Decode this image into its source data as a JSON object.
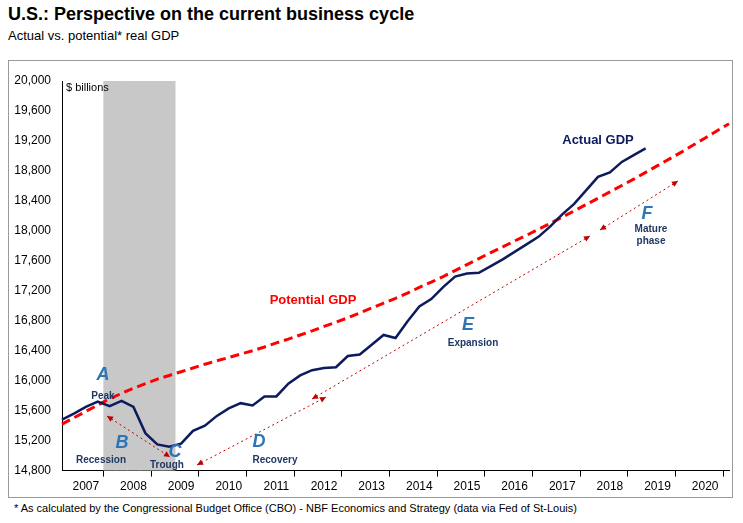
{
  "chart_data": {
    "type": "line",
    "title": "U.S.: Perspective on the current business cycle",
    "subtitle": "Actual vs. potential* real GDP",
    "y_label": "$ billions",
    "note": "* As calculated by the Congressional Budget Office (CBO) - NBF Economics and Strategy (data via Fed of St-Louis)",
    "categories": [
      null,
      null,
      "2007",
      null,
      null,
      null,
      "2008",
      null,
      null,
      null,
      "2009",
      null,
      null,
      null,
      "2010",
      null,
      null,
      null,
      "2011",
      null,
      null,
      null,
      "2012",
      null,
      null,
      null,
      "2013",
      null,
      null,
      null,
      "2014",
      null,
      null,
      null,
      "2015",
      null,
      null,
      null,
      "2016",
      null,
      null,
      null,
      "2017",
      null,
      null,
      null,
      "2018",
      null,
      null,
      null,
      "2019",
      null,
      null,
      null,
      "2020",
      null,
      null
    ],
    "series": [
      {
        "name": "Actual GDP",
        "color": "#0d1b5e",
        "line_style": "solid",
        "marker": "none",
        "values": [
          15480,
          15560,
          15650,
          15720,
          15660,
          15730,
          15650,
          15300,
          15150,
          15120,
          15160,
          15330,
          15400,
          15530,
          15630,
          15700,
          15670,
          15790,
          15790,
          15960,
          16070,
          16140,
          16170,
          16180,
          16330,
          16350,
          16480,
          16610,
          16570,
          16790,
          16990,
          17090,
          17250,
          17390,
          17430,
          17440,
          17530,
          17620,
          17720,
          17820,
          17920,
          18060,
          18220,
          18360,
          18540,
          18720,
          18780,
          18920,
          19010,
          19100,
          null,
          null,
          null,
          null,
          null,
          null,
          null
        ]
      },
      {
        "name": "Potential GDP",
        "color": "#ff0000",
        "line_style": "dashed",
        "marker": "none",
        "values": [
          15420,
          15505,
          15590,
          15675,
          15760,
          15830,
          15900,
          15960,
          16020,
          16070,
          16120,
          16170,
          16220,
          16265,
          16310,
          16355,
          16400,
          16450,
          16505,
          16555,
          16610,
          16665,
          16725,
          16780,
          16840,
          16905,
          16970,
          17035,
          17100,
          17170,
          17245,
          17315,
          17390,
          17470,
          17550,
          17630,
          17710,
          17785,
          17865,
          17940,
          18020,
          18100,
          18185,
          18265,
          18350,
          18435,
          18520,
          18605,
          18690,
          18780,
          18870,
          18960,
          19050,
          19145,
          19240,
          19335,
          19430
        ]
      },
      {
        "type": "bar",
        "color": "#c8c8c8",
        "values": [
          null,
          null,
          null,
          null,
          20000,
          20000,
          20000,
          20000,
          20000,
          20000,
          null,
          null,
          null,
          null,
          null,
          null,
          null,
          null,
          null,
          null,
          null,
          null,
          null,
          null,
          null,
          null,
          null,
          null,
          null,
          null,
          null,
          null,
          null,
          null,
          null,
          null,
          null,
          null,
          null,
          null,
          null,
          null,
          null,
          null,
          null,
          null,
          null,
          null,
          null,
          null,
          null,
          null,
          null,
          null,
          null,
          null,
          null
        ]
      }
    ],
    "ylim": [
      14800,
      20000
    ],
    "yticks": [
      {
        "value": 14800,
        "label": "14,800"
      },
      {
        "value": 15200,
        "label": "15,200"
      },
      {
        "value": 15600,
        "label": "15,600"
      },
      {
        "value": 16000,
        "label": "16,000"
      },
      {
        "value": 16400,
        "label": "16,400"
      },
      {
        "value": 16800,
        "label": "16,800"
      },
      {
        "value": 17200,
        "label": "17,200"
      },
      {
        "value": 17600,
        "label": "17,600"
      },
      {
        "value": 18000,
        "label": "18,000"
      },
      {
        "value": 18400,
        "label": "18,400"
      },
      {
        "value": 18800,
        "label": "18,800"
      },
      {
        "value": 19200,
        "label": "19,200"
      },
      {
        "value": 19600,
        "label": "19,600"
      },
      {
        "value": 20000,
        "label": "20,000"
      }
    ],
    "grid": false,
    "annotations": [
      {
        "letter": "A",
        "label": "Peak"
      },
      {
        "letter": "B",
        "label": "Recession"
      },
      {
        "letter": "C",
        "label": "Trough"
      },
      {
        "letter": "D",
        "label": "Recovery"
      },
      {
        "letter": "E",
        "label": "Expansion"
      },
      {
        "letter": "F",
        "label": "Mature phase"
      }
    ]
  }
}
